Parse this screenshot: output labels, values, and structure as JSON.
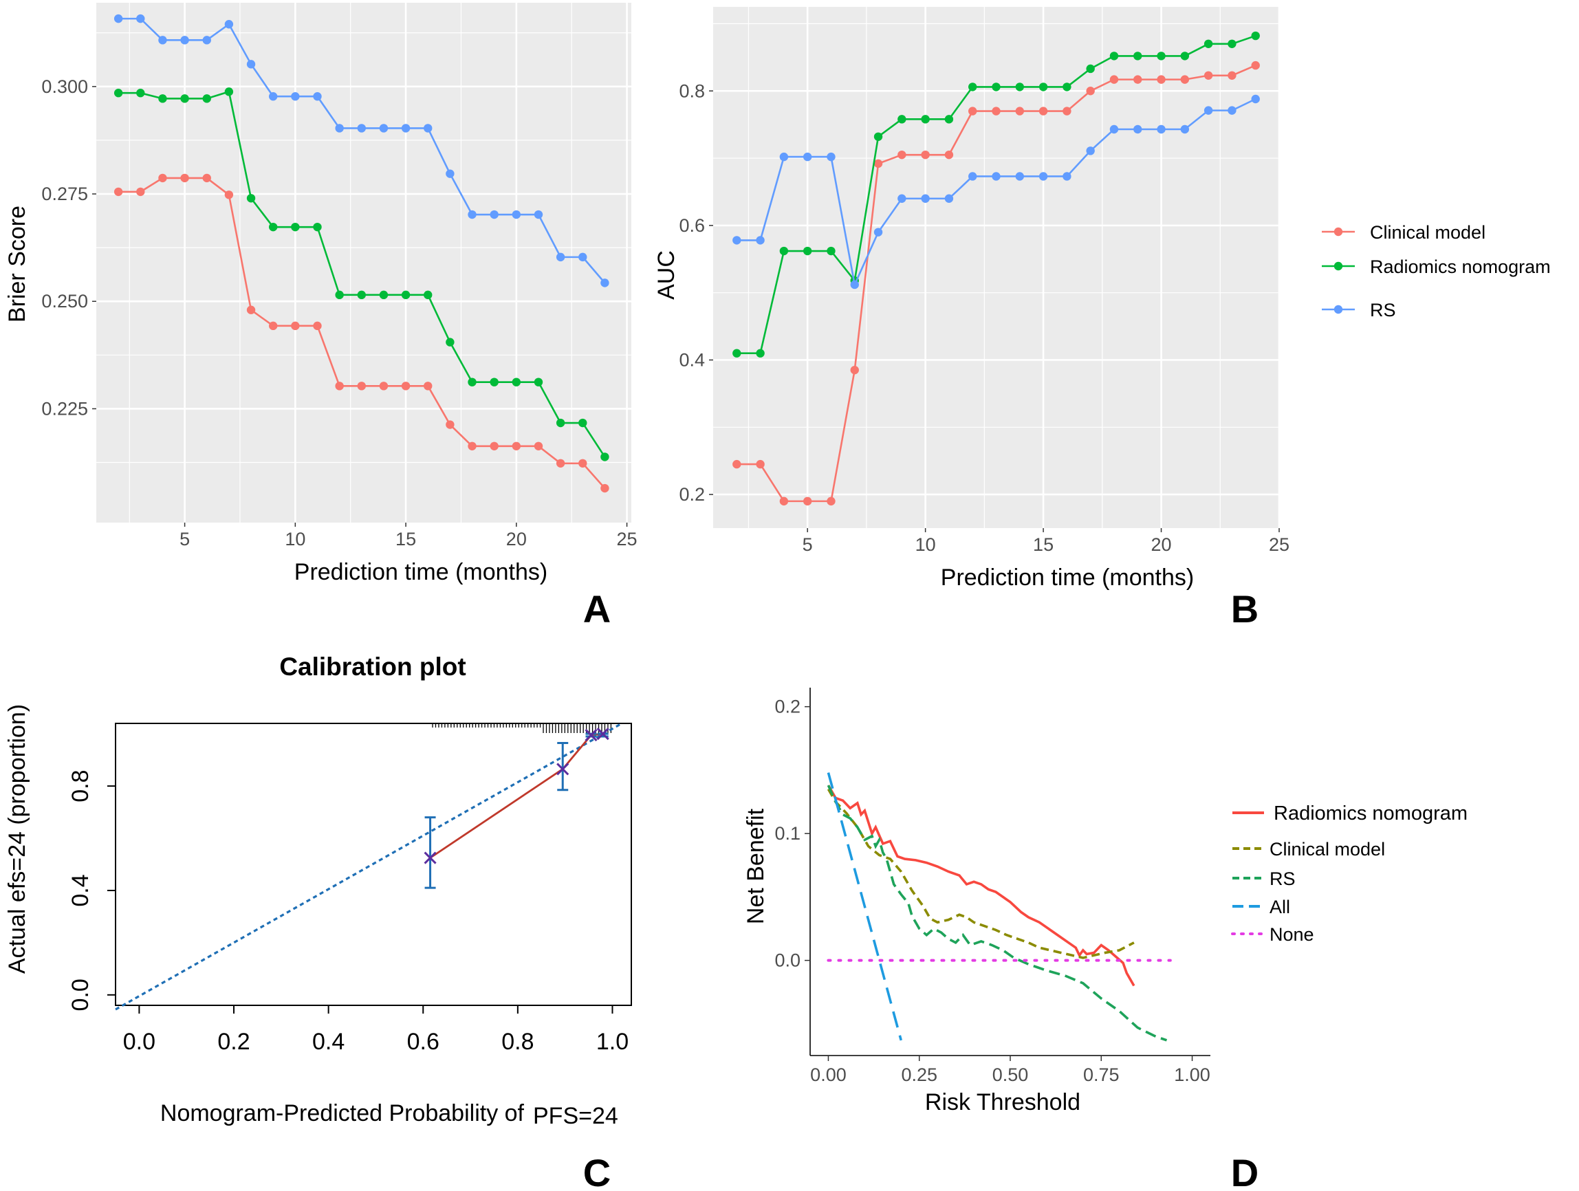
{
  "panels": {
    "A": {
      "label": "A",
      "chart_data": {
        "type": "line",
        "xlabel": "Prediction time (months)",
        "ylabel": "Brier Score",
        "xlim": [
          1.0,
          25.2
        ],
        "ylim": [
          0.1985,
          0.3195
        ],
        "xticks": [
          5,
          10,
          15,
          20,
          25
        ],
        "yticks": [
          0.225,
          0.25,
          0.275,
          0.3
        ],
        "ytick_labels": [
          "0.225",
          "0.250",
          "0.275",
          "0.300"
        ],
        "x": [
          2,
          3,
          4,
          5,
          6,
          7,
          8,
          9,
          10,
          11,
          12,
          13,
          14,
          15,
          16,
          17,
          18,
          19,
          20,
          21,
          22,
          23,
          24
        ],
        "series": [
          {
            "name": "Clinical model",
            "color": "#F8766D",
            "values": [
              0.2755,
              0.2755,
              0.2787,
              0.2787,
              0.2787,
              0.2748,
              0.248,
              0.2443,
              0.2443,
              0.2443,
              0.2303,
              0.2303,
              0.2303,
              0.2303,
              0.2303,
              0.2213,
              0.2163,
              0.2163,
              0.2163,
              0.2163,
              0.2123,
              0.2123,
              0.2065
            ]
          },
          {
            "name": "Radiomics nomogram",
            "color": "#00BA38",
            "values": [
              0.2985,
              0.2985,
              0.2972,
              0.2972,
              0.2972,
              0.2988,
              0.274,
              0.2673,
              0.2673,
              0.2673,
              0.2515,
              0.2515,
              0.2515,
              0.2515,
              0.2515,
              0.2405,
              0.2312,
              0.2312,
              0.2312,
              0.2312,
              0.2217,
              0.2217,
              0.2138
            ]
          },
          {
            "name": "RS",
            "color": "#619CFF",
            "values": [
              0.3158,
              0.3158,
              0.3108,
              0.3108,
              0.3108,
              0.3145,
              0.3052,
              0.2977,
              0.2977,
              0.2977,
              0.2903,
              0.2903,
              0.2903,
              0.2903,
              0.2903,
              0.2797,
              0.2702,
              0.2702,
              0.2702,
              0.2702,
              0.2603,
              0.2603,
              0.2543
            ]
          }
        ]
      }
    },
    "B": {
      "label": "B",
      "chart_data": {
        "type": "line",
        "xlabel": "Prediction time (months)",
        "ylabel": "AUC",
        "xlim": [
          1.0,
          25.0
        ],
        "ylim": [
          0.15,
          0.925
        ],
        "xticks": [
          5,
          10,
          15,
          20,
          25
        ],
        "yticks": [
          0.2,
          0.4,
          0.6,
          0.8
        ],
        "ytick_labels": [
          "0.2",
          "0.4",
          "0.6",
          "0.8"
        ],
        "x": [
          2,
          3,
          4,
          5,
          6,
          7,
          8,
          9,
          10,
          11,
          12,
          13,
          14,
          15,
          16,
          17,
          18,
          19,
          20,
          21,
          22,
          23,
          24
        ],
        "legend": [
          "Clinical model",
          "Radiomics nomogram",
          "RS"
        ],
        "series": [
          {
            "name": "Clinical model",
            "color": "#F8766D",
            "values": [
              0.245,
              0.245,
              0.19,
              0.19,
              0.19,
              0.385,
              0.692,
              0.705,
              0.705,
              0.705,
              0.77,
              0.77,
              0.77,
              0.77,
              0.77,
              0.8,
              0.817,
              0.817,
              0.817,
              0.817,
              0.823,
              0.823,
              0.838
            ]
          },
          {
            "name": "Radiomics nomogram",
            "color": "#00BA38",
            "values": [
              0.41,
              0.41,
              0.562,
              0.562,
              0.562,
              0.518,
              0.732,
              0.758,
              0.758,
              0.758,
              0.806,
              0.806,
              0.806,
              0.806,
              0.806,
              0.833,
              0.852,
              0.852,
              0.852,
              0.852,
              0.87,
              0.87,
              0.882
            ]
          },
          {
            "name": "RS",
            "color": "#619CFF",
            "values": [
              0.578,
              0.578,
              0.702,
              0.702,
              0.702,
              0.512,
              0.59,
              0.64,
              0.64,
              0.64,
              0.673,
              0.673,
              0.673,
              0.673,
              0.673,
              0.711,
              0.743,
              0.743,
              0.743,
              0.743,
              0.771,
              0.771,
              0.788
            ]
          }
        ]
      }
    },
    "C": {
      "label": "C",
      "chart_data": {
        "type": "scatter",
        "title": "Calibration plot",
        "xlabel": "Nomogram-Predicted Probability of",
        "xlabel_suffix": "PFS=24",
        "ylabel": "Actual efs=24 (proportion)",
        "xlim": [
          -0.05,
          1.04
        ],
        "ylim": [
          -0.04,
          1.04
        ],
        "xticks": [
          0.0,
          0.2,
          0.4,
          0.6,
          0.8,
          1.0
        ],
        "xtick_labels": [
          "0.0",
          "0.2",
          "0.4",
          "0.6",
          "0.8",
          "1.0"
        ],
        "yticks": [
          0.0,
          0.4,
          0.8
        ],
        "ytick_labels": [
          "0.0",
          "0.4",
          "0.8"
        ],
        "points": [
          {
            "x": 0.615,
            "y": 0.525,
            "lo": 0.41,
            "hi": 0.68
          },
          {
            "x": 0.895,
            "y": 0.865,
            "lo": 0.785,
            "hi": 0.965
          },
          {
            "x": 0.955,
            "y": 0.995,
            "lo": 0.99,
            "hi": 1.0
          },
          {
            "x": 0.98,
            "y": 1.0,
            "lo": 0.99,
            "hi": 1.0
          }
        ],
        "ideal_line": {
          "color": "#1F6FB5"
        },
        "fit_line": {
          "color": "#C0392B"
        },
        "errorbar_color": "#1F6FB5"
      }
    },
    "D": {
      "label": "D",
      "chart_data": {
        "type": "line",
        "xlabel": "Risk Threshold",
        "ylabel": "Net Benefit",
        "xlim": [
          -0.05,
          1.05
        ],
        "ylim": [
          -0.075,
          0.215
        ],
        "xticks": [
          0.0,
          0.25,
          0.5,
          0.75,
          1.0
        ],
        "xtick_labels": [
          "0.00",
          "0.25",
          "0.50",
          "0.75",
          "1.00"
        ],
        "yticks": [
          0.0,
          0.1,
          0.2
        ],
        "ytick_labels": [
          "0.0",
          "0.1",
          "0.2"
        ],
        "series": [
          {
            "name": "Radiomics nomogram",
            "color": "#F8483F",
            "dash": "",
            "x": [
              0,
              0.02,
              0.04,
              0.06,
              0.08,
              0.09,
              0.1,
              0.12,
              0.13,
              0.15,
              0.17,
              0.19,
              0.21,
              0.24,
              0.27,
              0.3,
              0.33,
              0.36,
              0.38,
              0.4,
              0.42,
              0.44,
              0.46,
              0.48,
              0.49,
              0.5,
              0.53,
              0.55,
              0.58,
              0.61,
              0.63,
              0.66,
              0.68,
              0.69,
              0.7,
              0.71,
              0.73,
              0.75,
              0.77,
              0.79,
              0.81,
              0.82,
              0.83,
              0.84
            ],
            "y": [
              0.138,
              0.128,
              0.126,
              0.12,
              0.124,
              0.115,
              0.118,
              0.1,
              0.105,
              0.092,
              0.094,
              0.082,
              0.08,
              0.079,
              0.077,
              0.074,
              0.07,
              0.067,
              0.06,
              0.062,
              0.06,
              0.056,
              0.054,
              0.05,
              0.048,
              0.046,
              0.038,
              0.034,
              0.03,
              0.024,
              0.02,
              0.014,
              0.01,
              0.004,
              0.008,
              0.005,
              0.006,
              0.012,
              0.008,
              0.003,
              -0.002,
              -0.01,
              -0.015,
              -0.02
            ]
          },
          {
            "name": "Clinical model",
            "color": "#8B8B00",
            "dash": "12,7",
            "x": [
              0,
              0.02,
              0.05,
              0.08,
              0.11,
              0.14,
              0.17,
              0.2,
              0.23,
              0.26,
              0.28,
              0.3,
              0.33,
              0.36,
              0.38,
              0.4,
              0.43,
              0.46,
              0.49,
              0.52,
              0.55,
              0.58,
              0.61,
              0.64,
              0.67,
              0.7,
              0.73,
              0.76,
              0.8,
              0.84
            ],
            "y": [
              0.135,
              0.125,
              0.116,
              0.105,
              0.09,
              0.083,
              0.08,
              0.07,
              0.055,
              0.043,
              0.033,
              0.03,
              0.032,
              0.036,
              0.034,
              0.03,
              0.027,
              0.024,
              0.02,
              0.017,
              0.014,
              0.01,
              0.008,
              0.006,
              0.004,
              0.002,
              0.004,
              0.006,
              0.008,
              0.014
            ]
          },
          {
            "name": "RS",
            "color": "#1EA35A",
            "dash": "16,8",
            "x": [
              0,
              0.02,
              0.04,
              0.06,
              0.08,
              0.09,
              0.1,
              0.12,
              0.13,
              0.14,
              0.15,
              0.16,
              0.17,
              0.18,
              0.2,
              0.22,
              0.23,
              0.25,
              0.27,
              0.29,
              0.31,
              0.33,
              0.35,
              0.37,
              0.39,
              0.42,
              0.45,
              0.48,
              0.51,
              0.55,
              0.6,
              0.65,
              0.7,
              0.75,
              0.8,
              0.85,
              0.9,
              0.93
            ],
            "y": [
              0.138,
              0.125,
              0.115,
              0.112,
              0.105,
              0.1,
              0.095,
              0.098,
              0.09,
              0.095,
              0.085,
              0.08,
              0.07,
              0.06,
              0.052,
              0.045,
              0.035,
              0.025,
              0.02,
              0.025,
              0.022,
              0.017,
              0.014,
              0.02,
              0.012,
              0.015,
              0.012,
              0.008,
              0.002,
              -0.003,
              -0.008,
              -0.012,
              -0.018,
              -0.03,
              -0.04,
              -0.053,
              -0.06,
              -0.063
            ]
          },
          {
            "name": "All",
            "color": "#1E9BE0",
            "dash": "24,12",
            "x": [
              0,
              0.2
            ],
            "y": [
              0.148,
              -0.063
            ]
          },
          {
            "name": "None",
            "color": "#E33BE3",
            "dash": "3,12",
            "x": [
              0,
              0.94
            ],
            "y": [
              0,
              0
            ]
          }
        ]
      }
    }
  }
}
